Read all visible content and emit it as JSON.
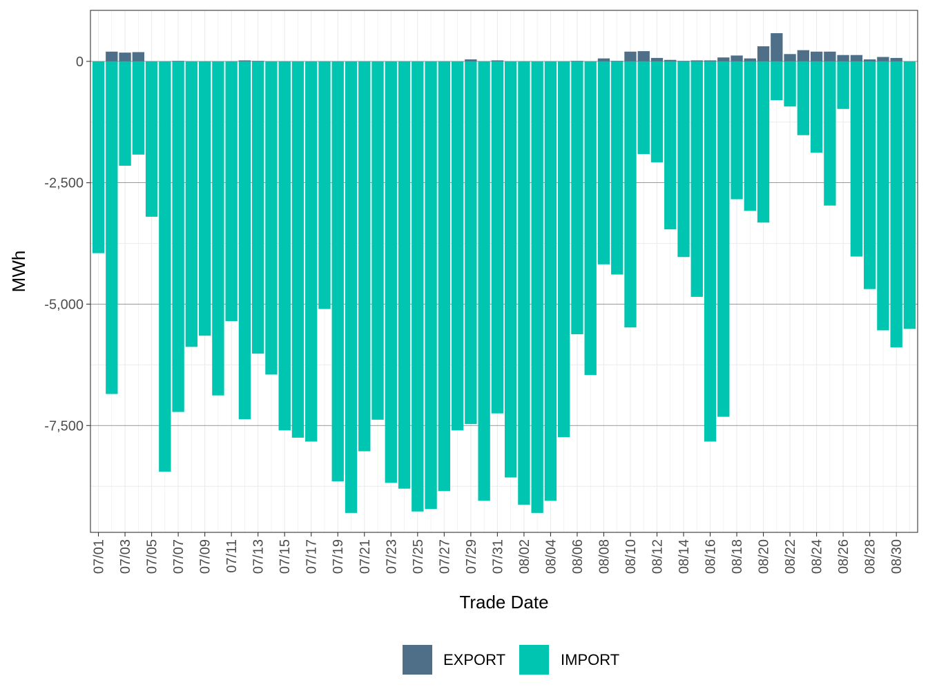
{
  "chart_data": {
    "type": "bar",
    "stacked": true,
    "title": "",
    "xlabel": "Trade Date",
    "ylabel": "MWh",
    "ylim": [
      -9700,
      1050
    ],
    "y_ticks": [
      0,
      -2500,
      -5000,
      -7500
    ],
    "y_tick_labels": [
      "0",
      "-2,500",
      "-5,000",
      "-7,500"
    ],
    "legend_position": "bottom",
    "categories": [
      "07/01",
      "07/02",
      "07/03",
      "07/04",
      "07/05",
      "07/06",
      "07/07",
      "07/08",
      "07/09",
      "07/10",
      "07/11",
      "07/12",
      "07/13",
      "07/14",
      "07/15",
      "07/16",
      "07/17",
      "07/18",
      "07/19",
      "07/20",
      "07/21",
      "07/22",
      "07/23",
      "07/24",
      "07/25",
      "07/26",
      "07/27",
      "07/28",
      "07/29",
      "07/30",
      "07/31",
      "08/01",
      "08/02",
      "08/03",
      "08/04",
      "08/05",
      "08/06",
      "08/07",
      "08/08",
      "08/09",
      "08/10",
      "08/11",
      "08/12",
      "08/13",
      "08/14",
      "08/15",
      "08/16",
      "08/17",
      "08/18",
      "08/19",
      "08/20",
      "08/21",
      "08/22",
      "08/23",
      "08/24",
      "08/25",
      "08/26",
      "08/27",
      "08/28",
      "08/29",
      "08/30",
      "08/31"
    ],
    "x_tick_labels": [
      "07/01",
      "07/03",
      "07/05",
      "07/07",
      "07/09",
      "07/11",
      "07/13",
      "07/15",
      "07/17",
      "07/19",
      "07/21",
      "07/23",
      "07/25",
      "07/27",
      "07/29",
      "07/31",
      "08/02",
      "08/04",
      "08/06",
      "08/08",
      "08/10",
      "08/12",
      "08/14",
      "08/16",
      "08/18",
      "08/20",
      "08/22",
      "08/24",
      "08/26",
      "08/28",
      "08/30"
    ],
    "series": [
      {
        "name": "EXPORT",
        "color": "#4E6F87",
        "values": [
          0,
          200,
          180,
          190,
          0,
          0,
          10,
          0,
          0,
          0,
          0,
          20,
          10,
          0,
          0,
          0,
          0,
          0,
          0,
          0,
          0,
          0,
          0,
          0,
          0,
          0,
          0,
          0,
          40,
          0,
          20,
          0,
          0,
          0,
          0,
          0,
          10,
          0,
          60,
          10,
          200,
          210,
          70,
          30,
          10,
          20,
          20,
          80,
          120,
          60,
          310,
          580,
          150,
          230,
          200,
          200,
          130,
          130,
          40,
          90,
          70,
          0
        ]
      },
      {
        "name": "IMPORT",
        "color": "#00C5B0",
        "values": [
          -3950,
          -6850,
          -2150,
          -1920,
          -3200,
          -8450,
          -7220,
          -5880,
          -5650,
          -6880,
          -5350,
          -7370,
          -6020,
          -6450,
          -7600,
          -7750,
          -7830,
          -5100,
          -8650,
          -9300,
          -8030,
          -7380,
          -8680,
          -8800,
          -9270,
          -9220,
          -8850,
          -7600,
          -7470,
          -9050,
          -7250,
          -8570,
          -9130,
          -9300,
          -9050,
          -7740,
          -5620,
          -6460,
          -4180,
          -4390,
          -5480,
          -1910,
          -2080,
          -3460,
          -4030,
          -4850,
          -7830,
          -7320,
          -2840,
          -3080,
          -3320,
          -800,
          -930,
          -1520,
          -1880,
          -2970,
          -980,
          -4020,
          -4690,
          -5540,
          -5890,
          -5510
        ]
      }
    ]
  }
}
